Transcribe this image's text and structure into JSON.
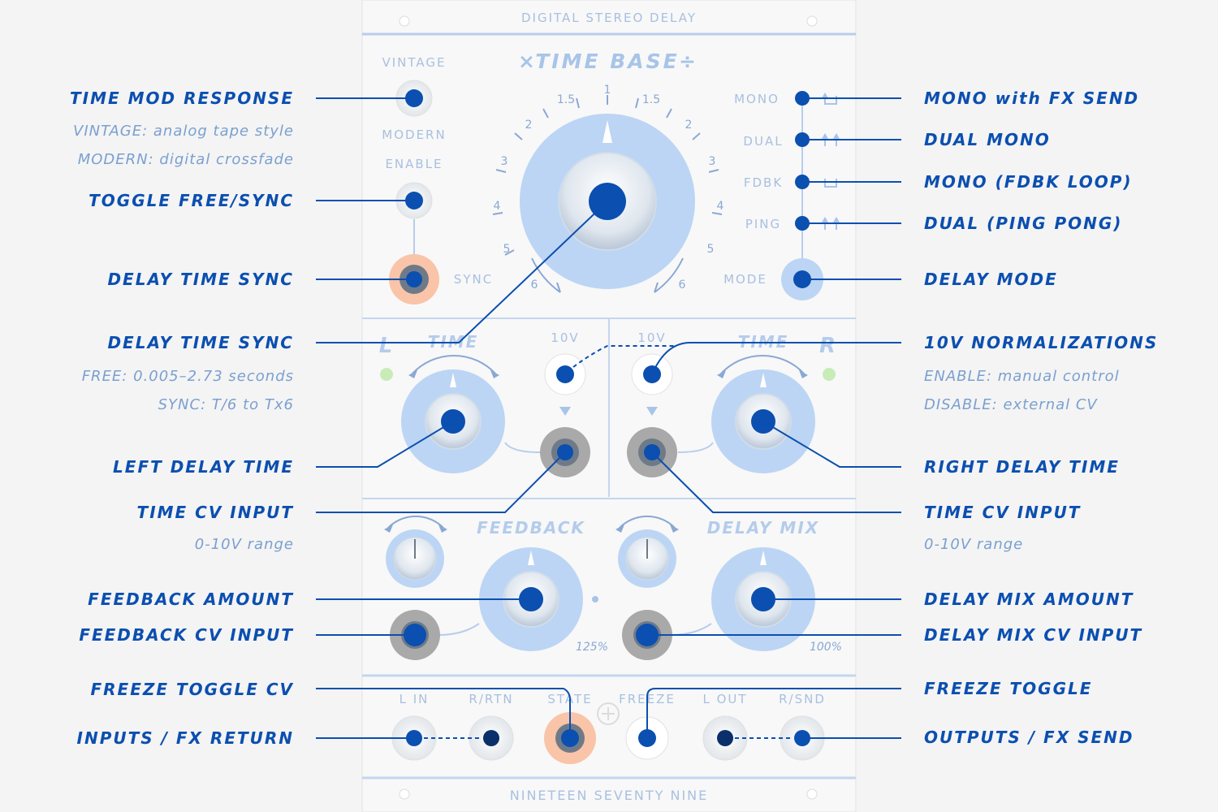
{
  "module": {
    "header": "DIGITAL STEREO DELAY",
    "footer": "NINETEEN SEVENTY NINE",
    "time_base": {
      "title": "TIME BASE",
      "multiply_symbol": "×",
      "divide_symbol": "÷"
    },
    "scale_marks": [
      "1",
      "1.5",
      "1.5",
      "2",
      "2",
      "3",
      "3",
      "4",
      "4",
      "5",
      "5",
      "6",
      "6"
    ],
    "switch_labels": {
      "vintage": "VINTAGE",
      "modern": "MODERN",
      "enable": "ENABLE",
      "sync": "SYNC"
    },
    "mode_labels": {
      "mono": "MONO",
      "dual": "DUAL",
      "fdbk": "FDBK",
      "ping": "PING",
      "mode": "MODE"
    },
    "time_section": {
      "left_letter": "L",
      "right_letter": "R",
      "time": "TIME",
      "ten_v": "10V"
    },
    "mix_section": {
      "feedback": "FEEDBACK",
      "delay_mix": "DELAY MIX",
      "feedback_max": "125%",
      "mix_max": "100%"
    },
    "jack_labels": {
      "l_in": "L IN",
      "r_rtn": "R/RTN",
      "state": "STATE",
      "freeze": "FREEZE",
      "l_out": "L OUT",
      "r_snd": "R/SND"
    }
  },
  "callouts_left": [
    {
      "id": "time-mod-response",
      "label": "TIME MOD RESPONSE",
      "notes": [
        "VINTAGE: analog tape style",
        "MODERN: digital crossfade"
      ]
    },
    {
      "id": "toggle-free-sync",
      "label": "TOGGLE FREE/SYNC",
      "notes": []
    },
    {
      "id": "delay-time-sync-jack",
      "label": "DELAY TIME SYNC",
      "notes": []
    },
    {
      "id": "delay-time-sync-knob",
      "label": "DELAY TIME SYNC",
      "notes": [
        "FREE: 0.005–2.73 seconds",
        "SYNC: T/6 to Tx6"
      ]
    },
    {
      "id": "left-delay-time",
      "label": "LEFT DELAY TIME",
      "notes": []
    },
    {
      "id": "time-cv-input-left",
      "label": "TIME CV INPUT",
      "notes": [
        "0-10V range"
      ]
    },
    {
      "id": "feedback-amount",
      "label": "FEEDBACK AMOUNT",
      "notes": []
    },
    {
      "id": "feedback-cv-input",
      "label": "FEEDBACK CV INPUT",
      "notes": []
    },
    {
      "id": "freeze-toggle-cv",
      "label": "FREEZE TOGGLE CV",
      "notes": []
    },
    {
      "id": "inputs-fx-return",
      "label": "INPUTS / FX RETURN",
      "notes": []
    }
  ],
  "callouts_right": [
    {
      "id": "mono-fx-send",
      "label": "MONO with FX SEND",
      "notes": []
    },
    {
      "id": "dual-mono",
      "label": "DUAL MONO",
      "notes": []
    },
    {
      "id": "mono-fdbk-loop",
      "label": "MONO (FDBK LOOP)",
      "notes": []
    },
    {
      "id": "dual-ping-pong",
      "label": "DUAL (PING PONG)",
      "notes": []
    },
    {
      "id": "delay-mode",
      "label": "DELAY MODE",
      "notes": []
    },
    {
      "id": "ten-v-normalizations",
      "label": "10V NORMALIZATIONS",
      "notes": [
        "ENABLE: manual control",
        "DISABLE: external CV"
      ]
    },
    {
      "id": "right-delay-time",
      "label": "RIGHT DELAY TIME",
      "notes": []
    },
    {
      "id": "time-cv-input-right",
      "label": "TIME CV INPUT",
      "notes": [
        "0-10V range"
      ]
    },
    {
      "id": "delay-mix-amount",
      "label": "DELAY MIX AMOUNT",
      "notes": []
    },
    {
      "id": "delay-mix-cv-input",
      "label": "DELAY MIX CV INPUT",
      "notes": []
    },
    {
      "id": "freeze-toggle",
      "label": "FREEZE TOGGLE",
      "notes": []
    },
    {
      "id": "outputs-fx-send",
      "label": "OUTPUTS / FX SEND",
      "notes": []
    }
  ],
  "colors": {
    "accent": "#0b4fb0",
    "knob": "#b9d3f3",
    "panel": "#f7f7f7",
    "sync_jack": "#f9c4a8",
    "grey_jack": "#a9a9a9"
  }
}
